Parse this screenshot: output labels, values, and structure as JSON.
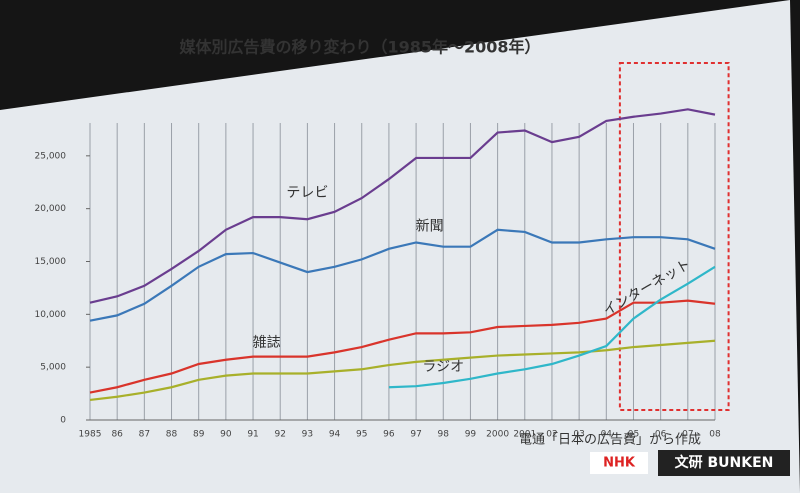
{
  "chart_data": {
    "type": "line",
    "title": "媒体別広告費の移り変わり（1985年～2008年）",
    "source": "電通「日本の広告費」から作成",
    "logos": [
      "NHK",
      "文研 BUNKEN"
    ],
    "categories": [
      "1985",
      "86",
      "87",
      "88",
      "89",
      "90",
      "91",
      "92",
      "93",
      "94",
      "95",
      "96",
      "97",
      "98",
      "99",
      "2000",
      "2001",
      "02",
      "03",
      "04",
      "05",
      "06",
      "07",
      "08"
    ],
    "ylim": [
      0,
      30000
    ],
    "yticks": [
      0,
      {
        "value": 5000,
        "label": "5,000"
      },
      {
        "value": 10000,
        "label": "10,000"
      },
      {
        "value": 15000,
        "label": "15,000"
      },
      {
        "value": 20000,
        "label": "20,000"
      },
      {
        "value": 25000,
        "label": "25,000"
      }
    ],
    "xgrid": true,
    "series": [
      {
        "name": "テレビ",
        "color": "#6a3d8f",
        "values": [
          11100,
          11700,
          12700,
          14300,
          16000,
          18000,
          19200,
          19200,
          19000,
          19700,
          21000,
          22800,
          24800,
          24800,
          24800,
          27200,
          27400,
          26300,
          26800,
          28300,
          28700,
          29000,
          29400,
          28900
        ]
      },
      {
        "name": "新聞",
        "color": "#3b78b8",
        "values": [
          9400,
          9900,
          11000,
          12700,
          14500,
          15700,
          15800,
          14900,
          14000,
          14500,
          15200,
          16200,
          16800,
          16400,
          16400,
          18000,
          17800,
          16800,
          16800,
          17100,
          17300,
          17300,
          17100,
          16200
        ]
      },
      {
        "name": "雑誌",
        "color": "#d9342b",
        "values": [
          2600,
          3100,
          3800,
          4400,
          5300,
          5700,
          6000,
          6000,
          6000,
          6400,
          6900,
          7600,
          8200,
          8200,
          8300,
          8800,
          8900,
          9000,
          9200,
          9600,
          11100,
          11100,
          11300,
          11000
        ]
      },
      {
        "name": "ラジオ",
        "color": "#a8b02a",
        "values": [
          1900,
          2200,
          2600,
          3100,
          3800,
          4200,
          4400,
          4400,
          4400,
          4600,
          4800,
          5200,
          5500,
          5700,
          5900,
          6100,
          6200,
          6300,
          6400,
          6600,
          6900,
          7100,
          7300,
          7500
        ]
      },
      {
        "name": "インターネット",
        "color": "#2fb7c9",
        "values": [
          null,
          null,
          null,
          null,
          null,
          null,
          null,
          null,
          null,
          null,
          null,
          3100,
          3200,
          3500,
          3900,
          4400,
          4800,
          5300,
          6100,
          7000,
          9600,
          11400,
          12900,
          14500
        ]
      }
    ]
  }
}
